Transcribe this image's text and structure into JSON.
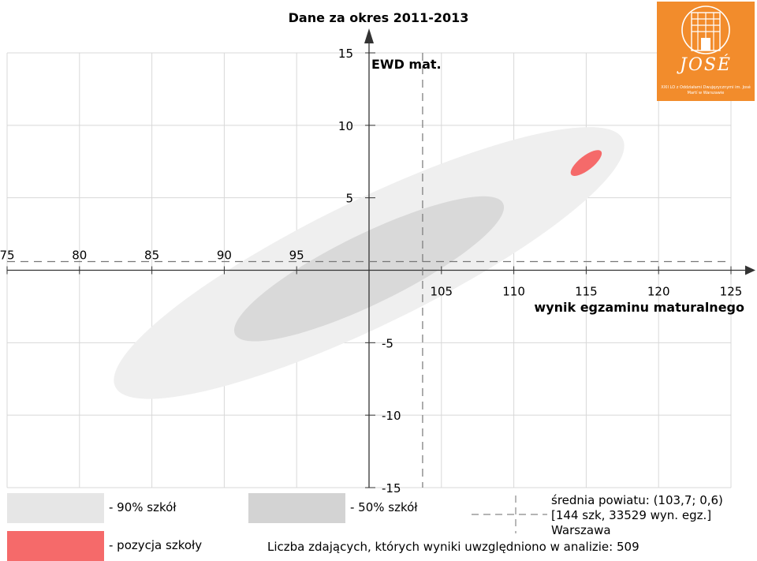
{
  "chart_data": {
    "type": "scatter",
    "title": "Dane za okres 2011-2013",
    "xlabel": "wynik egzaminu maturalnego",
    "ylabel": "EWD mat.",
    "xlim": [
      75,
      125
    ],
    "ylim": [
      -15,
      15
    ],
    "x_ticks": [
      "75",
      "80",
      "85",
      "90",
      "95",
      "105",
      "110",
      "115",
      "120",
      "125"
    ],
    "y_ticks": [
      "15",
      "10",
      "5",
      "-5",
      "-10",
      "-15"
    ],
    "grid": true,
    "regions": [
      {
        "name": "90% szkół",
        "center": [
          100,
          0.5
        ],
        "rx_units": 19.5,
        "ry_units": 4.3,
        "angle": -26,
        "color": "#efefef"
      },
      {
        "name": "50% szkół",
        "center": [
          100,
          0.1
        ],
        "rx_units": 10.3,
        "ry_units": 2.4,
        "angle": -26,
        "color": "#d9d9d9"
      }
    ],
    "school_position": {
      "name": "pozycja szkoły",
      "x": 115,
      "y": 7.4,
      "color": "#f56a6a"
    },
    "county_mean": {
      "x": 103.7,
      "y": 0.6
    }
  },
  "legend": {
    "p90_label": "- 90% szkół",
    "p50_label": "- 50% szkół",
    "school_label": "- pozycja szkoły",
    "p90_color": "#e6e6e6",
    "p50_color": "#d3d3d3",
    "school_color": "#f56a6a"
  },
  "stats": {
    "line1": "średnia powiatu: (103,7; 0,6)",
    "line2": "[144 szk, 33529 wyn. egz.]",
    "line3": "Warszawa"
  },
  "footer": "Liczba zdających, których wyniki uwzględniono w analizie: 509",
  "logo": {
    "name": "JOSÉ",
    "subtitle": "XXII LO z Oddziałami Dwujęzycznymi im. José Martí w Warszawie",
    "color": "#f28c2c"
  }
}
